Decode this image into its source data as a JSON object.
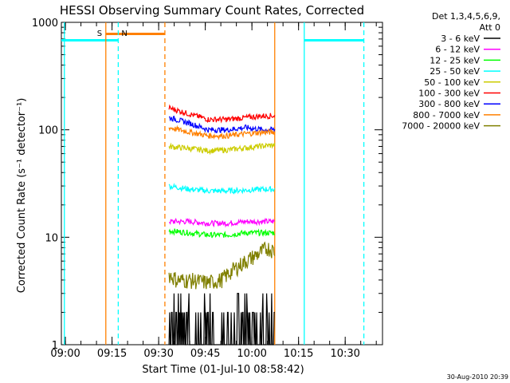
{
  "chart_data": {
    "type": "line",
    "title": "HESSI Observing Summary Count Rates, Corrected",
    "xlabel": "Start Time (01-Jul-10 08:58:42)",
    "ylabel": "Corrected Count Rate (s⁻¹ detector⁻¹)",
    "ylog": true,
    "ylim": [
      1,
      1000
    ],
    "xlim": [
      "08:58:42",
      "10:42:00"
    ],
    "x_ticks": [
      "09:00",
      "09:15",
      "09:30",
      "09:45",
      "10:00",
      "10:15",
      "10:30"
    ],
    "y_ticks": [
      "1",
      "10",
      "100",
      "1000"
    ],
    "legend_header": [
      "Det 1,3,4,5,6,9,",
      "Att 0"
    ],
    "legend_position": "right",
    "timestamp": "30-Aug-2010 20:39",
    "data_gap": {
      "start": "09:33:20",
      "end": "10:07:20"
    },
    "series": [
      {
        "name": "3 - 6 keV",
        "color": "#000000",
        "x": [
          "09:33:20",
          "09:40:00",
          "09:46:00",
          "09:52:00",
          "09:58:00",
          "10:04:00",
          "10:07:20"
        ],
        "y": [
          1.7,
          1.6,
          1.5,
          1.6,
          1.8,
          2.0,
          2.0
        ]
      },
      {
        "name": "6 - 12 keV",
        "color": "#ff00ff",
        "x": [
          "09:33:20",
          "09:40:00",
          "09:46:00",
          "09:52:00",
          "09:58:00",
          "10:04:00",
          "10:07:20"
        ],
        "y": [
          14,
          14,
          13.5,
          13.5,
          14,
          14,
          14
        ]
      },
      {
        "name": "12 - 25 keV",
        "color": "#00ff00",
        "x": [
          "09:33:20",
          "09:40:00",
          "09:46:00",
          "09:52:00",
          "09:58:00",
          "10:04:00",
          "10:07:20"
        ],
        "y": [
          11.5,
          11,
          10.5,
          10.5,
          11,
          11,
          11
        ]
      },
      {
        "name": "25 - 50 keV",
        "color": "#00ffff",
        "x": [
          "09:33:20",
          "09:40:00",
          "09:46:00",
          "09:52:00",
          "09:58:00",
          "10:04:00",
          "10:07:20"
        ],
        "y": [
          30,
          28,
          27,
          27,
          27.5,
          28,
          28
        ]
      },
      {
        "name": "50 - 100 keV",
        "color": "#cccc00",
        "x": [
          "09:33:20",
          "09:40:00",
          "09:46:00",
          "09:52:00",
          "09:58:00",
          "10:04:00",
          "10:07:20"
        ],
        "y": [
          70,
          67,
          64,
          65,
          68,
          71,
          72
        ]
      },
      {
        "name": "100 - 300 keV",
        "color": "#ff0000",
        "x": [
          "09:33:20",
          "09:40:00",
          "09:46:00",
          "09:52:00",
          "09:58:00",
          "10:04:00",
          "10:07:20"
        ],
        "y": [
          160,
          140,
          125,
          125,
          130,
          135,
          135
        ]
      },
      {
        "name": "300 - 800 keV",
        "color": "#0000ff",
        "x": [
          "09:33:20",
          "09:40:00",
          "09:46:00",
          "09:52:00",
          "09:58:00",
          "10:04:00",
          "10:07:20"
        ],
        "y": [
          130,
          115,
          100,
          100,
          105,
          100,
          100
        ]
      },
      {
        "name": "800 - 7000 keV",
        "color": "#ff8000",
        "x": [
          "09:33:20",
          "09:40:00",
          "09:46:00",
          "09:52:00",
          "09:58:00",
          "10:04:00",
          "10:07:20"
        ],
        "y": [
          105,
          95,
          88,
          88,
          92,
          95,
          95
        ]
      },
      {
        "name": "7000 - 20000 keV",
        "color": "#808000",
        "x": [
          "09:33:20",
          "09:36:00",
          "09:40:00",
          "09:46:00",
          "09:50:00",
          "09:54:00",
          "09:58:00",
          "10:02:00",
          "10:05:00",
          "10:07:20"
        ],
        "y": [
          4.5,
          4.0,
          4.0,
          3.8,
          4.0,
          5.0,
          6.0,
          7.0,
          8.0,
          7.5
        ]
      }
    ],
    "annotations": [
      {
        "label": "S",
        "color": "#ff8000",
        "time": "09:13:00",
        "style": "solid"
      },
      {
        "label": "N",
        "color": "#00ffff",
        "time": "09:17:00",
        "style": "dashed"
      }
    ],
    "markers": [
      {
        "kind": "orange-dashed-line",
        "time": "09:32:00"
      },
      {
        "kind": "orange-solid-line",
        "time": "10:07:20"
      },
      {
        "kind": "cyan-solid-line",
        "time": "10:16:50"
      },
      {
        "kind": "cyan-dashed-line",
        "time": "10:36:00"
      },
      {
        "kind": "cyan-solid-line",
        "time": "08:59:40"
      }
    ],
    "bars": [
      {
        "kind": "cyan-top-bar",
        "start": "08:58:42",
        "end": "09:17:00",
        "value": 680,
        "color": "#00ffff"
      },
      {
        "kind": "orange-top-bar",
        "start": "09:13:00",
        "end": "09:32:00",
        "value": 780,
        "color": "#ff8000"
      },
      {
        "kind": "cyan-top-bar",
        "start": "10:16:50",
        "end": "10:36:00",
        "value": 680,
        "color": "#00ffff"
      }
    ]
  }
}
